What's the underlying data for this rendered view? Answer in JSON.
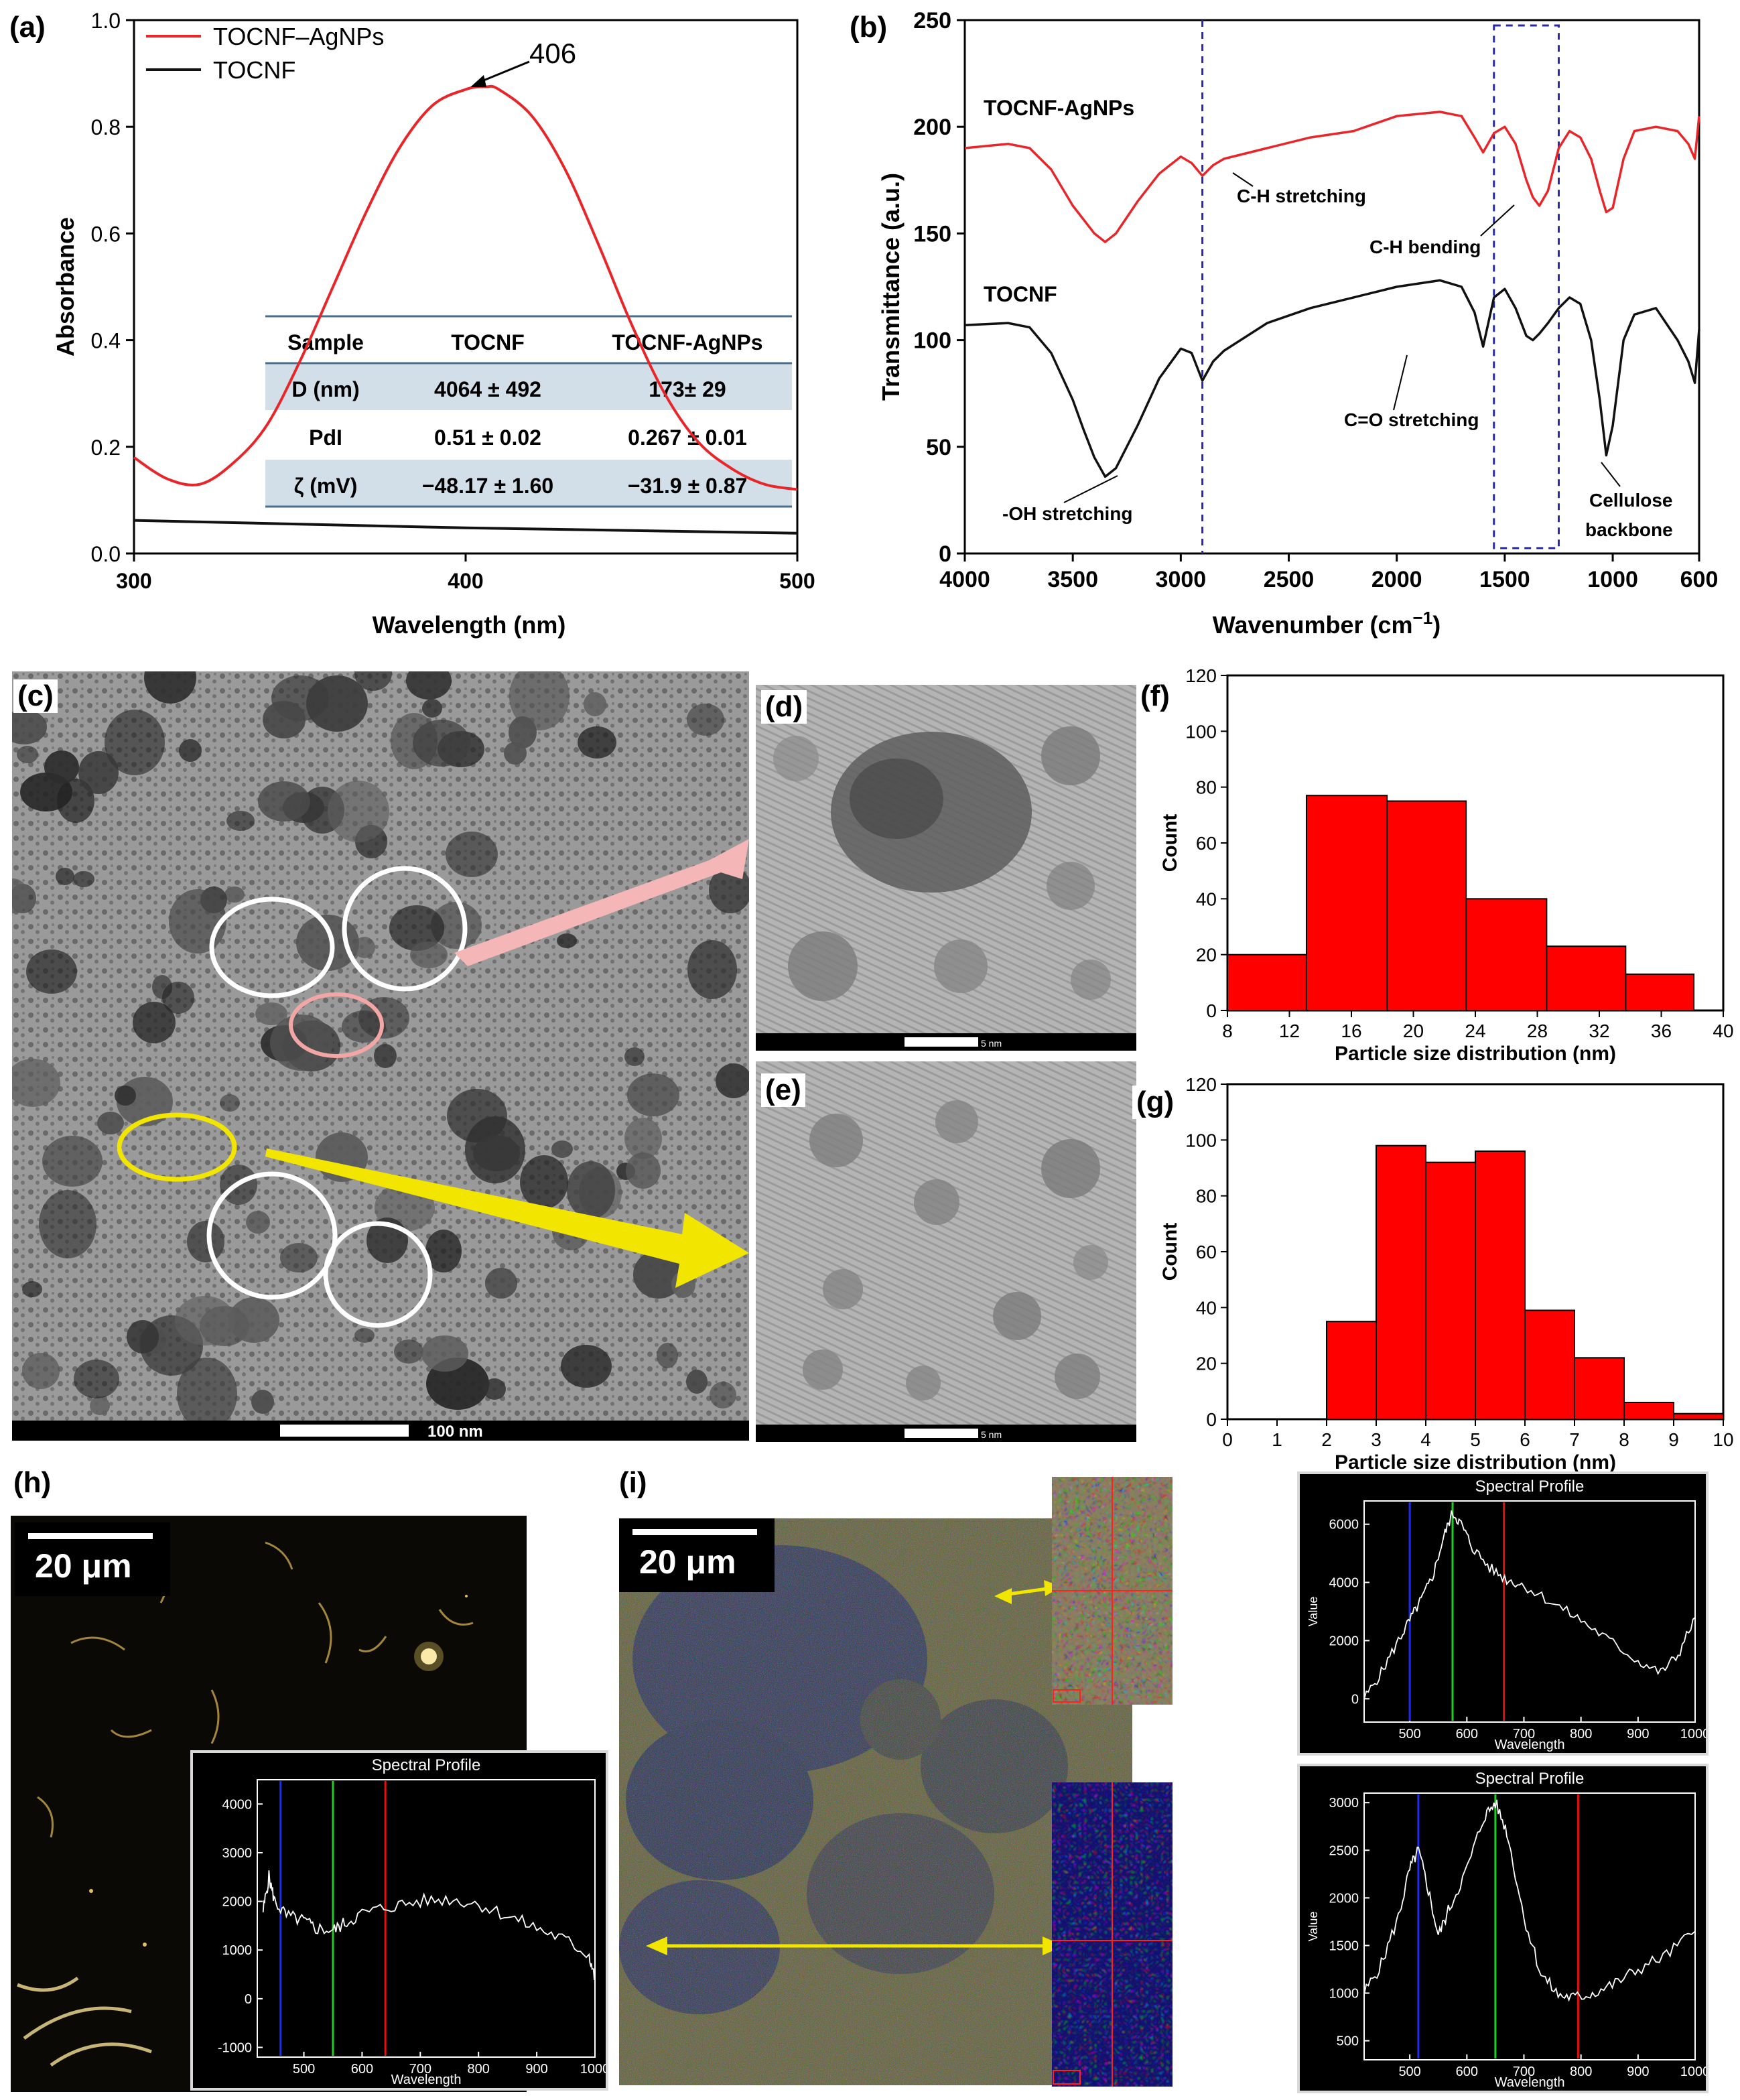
{
  "panel_labels": {
    "a": "(a)",
    "b": "(b)",
    "c": "(c)",
    "d": "(d)",
    "e": "(e)",
    "f": "(f)",
    "g": "(g)",
    "h": "(h)",
    "i": "(i)"
  },
  "colors": {
    "red": "#e8262a",
    "black": "#111111",
    "bar_red": "#ff0000",
    "tem_gray": "#8a8a8a",
    "hsi_blue": "#2a2a6a",
    "spec_blue": "#1a2aff",
    "spec_green": "#22cc22",
    "spec_red": "#dd1111"
  },
  "uvvis": {
    "legend": [
      "TOCNF–AgNPs",
      "TOCNF"
    ],
    "peak_label": "406",
    "xlabel": "Wavelength (nm)",
    "ylabel": "Absorbance",
    "xticks": [
      "300",
      "400",
      "500"
    ],
    "yticks": [
      "0.0",
      "0.2",
      "0.4",
      "0.6",
      "0.8",
      "1.0"
    ],
    "table": {
      "headers": [
        "Sample",
        "TOCNF",
        "TOCNF-AgNPs"
      ],
      "rows": [
        [
          "D (nm)",
          "4064 ± 492",
          "173± 29"
        ],
        [
          "PdI",
          "0.51 ± 0.02",
          "0.267 ± 0.01"
        ],
        [
          "ζ (mV)",
          "−48.17 ± 1.60",
          "−31.9 ± 0.87"
        ]
      ]
    }
  },
  "ftir": {
    "xlabel": "Wavenumber (cm",
    "xlabel_sup": "−1",
    "xlabel_close": ")",
    "ylabel": "Transmittance (a.u.)",
    "xticks": [
      "4000",
      "3500",
      "3000",
      "2500",
      "2000",
      "1500",
      "1000",
      "600"
    ],
    "yticks": [
      "0",
      "50",
      "100",
      "150",
      "200",
      "250"
    ],
    "series_labels": [
      "TOCNF-AgNPs",
      "TOCNF"
    ],
    "annotations": [
      "C-H stretching",
      "C-H bending",
      "-OH stretching",
      "C=O stretching",
      "Cellulose",
      "backbone"
    ]
  },
  "tem": {
    "scale_c": "100 nm",
    "scale_d": "5 nm",
    "scale_e": "5 nm"
  },
  "chart_data": [
    {
      "type": "line",
      "panel": "(a)",
      "xlabel": "Wavelength (nm)",
      "ylabel": "Absorbance",
      "xlim": [
        300,
        500
      ],
      "ylim": [
        0,
        1.0
      ],
      "series": [
        {
          "name": "TOCNF–AgNPs",
          "x": [
            300,
            310,
            320,
            330,
            340,
            350,
            360,
            370,
            380,
            390,
            400,
            406,
            410,
            420,
            430,
            440,
            450,
            460,
            470,
            480,
            490,
            500
          ],
          "y": [
            0.18,
            0.14,
            0.13,
            0.17,
            0.24,
            0.36,
            0.5,
            0.64,
            0.76,
            0.84,
            0.87,
            0.875,
            0.87,
            0.82,
            0.72,
            0.58,
            0.43,
            0.3,
            0.21,
            0.16,
            0.13,
            0.12
          ]
        },
        {
          "name": "TOCNF",
          "x": [
            300,
            350,
            400,
            450,
            500
          ],
          "y": [
            0.062,
            0.055,
            0.048,
            0.043,
            0.038
          ]
        }
      ],
      "annotations": [
        "406"
      ]
    },
    {
      "type": "line",
      "panel": "(b)",
      "xlabel": "Wavenumber (cm−1)",
      "ylabel": "Transmittance (a.u.)",
      "xlim": [
        4000,
        600
      ],
      "ylim": [
        0,
        250
      ],
      "series": [
        {
          "name": "TOCNF-AgNPs",
          "x": [
            4000,
            3800,
            3700,
            3600,
            3500,
            3400,
            3350,
            3300,
            3200,
            3100,
            3000,
            2950,
            2900,
            2850,
            2800,
            2600,
            2400,
            2200,
            2000,
            1800,
            1700,
            1640,
            1600,
            1550,
            1500,
            1450,
            1400,
            1370,
            1340,
            1300,
            1250,
            1200,
            1150,
            1100,
            1060,
            1030,
            1000,
            950,
            900,
            800,
            700,
            650,
            620,
            600
          ],
          "y": [
            190,
            192,
            190,
            180,
            163,
            150,
            146,
            150,
            165,
            178,
            186,
            183,
            177,
            182,
            185,
            190,
            195,
            198,
            205,
            207,
            205,
            195,
            188,
            197,
            200,
            192,
            175,
            167,
            163,
            170,
            190,
            198,
            195,
            185,
            170,
            160,
            162,
            185,
            198,
            200,
            198,
            192,
            185,
            205
          ]
        },
        {
          "name": "TOCNF",
          "x": [
            4000,
            3800,
            3700,
            3600,
            3500,
            3450,
            3400,
            3350,
            3300,
            3200,
            3100,
            3000,
            2950,
            2900,
            2850,
            2800,
            2600,
            2400,
            2200,
            2000,
            1800,
            1700,
            1640,
            1600,
            1550,
            1500,
            1450,
            1400,
            1370,
            1340,
            1300,
            1250,
            1200,
            1150,
            1100,
            1060,
            1030,
            1000,
            950,
            900,
            800,
            700,
            650,
            620,
            600
          ],
          "y": [
            107,
            108,
            106,
            94,
            72,
            58,
            45,
            36,
            40,
            60,
            82,
            96,
            94,
            81,
            90,
            95,
            108,
            115,
            120,
            125,
            128,
            125,
            113,
            97,
            120,
            124,
            115,
            102,
            100,
            103,
            108,
            115,
            120,
            117,
            100,
            72,
            46,
            60,
            100,
            112,
            115,
            100,
            90,
            80,
            105
          ]
        }
      ],
      "annotations": [
        "C-H stretching",
        "C-H bending",
        "-OH stretching",
        "C=O stretching",
        "Cellulose backbone"
      ],
      "markers": [
        {
          "type": "vline",
          "x": 2900
        },
        {
          "type": "box",
          "x": [
            1550,
            1250
          ]
        }
      ]
    },
    {
      "type": "bar",
      "panel": "(f)",
      "xlabel": "Particle size distribution (nm)",
      "ylabel": "Count",
      "xlim": [
        8,
        40
      ],
      "ylim": [
        0,
        120
      ],
      "xticks": [
        8,
        12,
        16,
        20,
        24,
        28,
        32,
        36,
        40
      ],
      "yticks": [
        0,
        20,
        40,
        60,
        80,
        100,
        120
      ],
      "bins": [
        [
          8,
          13.1
        ],
        [
          13.1,
          18.3
        ],
        [
          18.3,
          23.4
        ],
        [
          23.4,
          28.6
        ],
        [
          28.6,
          33.7
        ],
        [
          33.7,
          38.1
        ]
      ],
      "values": [
        20,
        77,
        75,
        40,
        23,
        13
      ]
    },
    {
      "type": "bar",
      "panel": "(g)",
      "xlabel": "Particle size distribution (nm)",
      "ylabel": "Count",
      "xlim": [
        0,
        10
      ],
      "ylim": [
        0,
        120
      ],
      "xticks": [
        0,
        1,
        2,
        3,
        4,
        5,
        6,
        7,
        8,
        9,
        10
      ],
      "yticks": [
        0,
        20,
        40,
        60,
        80,
        100,
        120
      ],
      "bins": [
        [
          2,
          3
        ],
        [
          3,
          4
        ],
        [
          4,
          5
        ],
        [
          5,
          6
        ],
        [
          6,
          7
        ],
        [
          7,
          8
        ],
        [
          8,
          9
        ],
        [
          9,
          10
        ]
      ],
      "values": [
        35,
        98,
        92,
        96,
        39,
        22,
        6,
        2
      ]
    },
    {
      "type": "line",
      "panel": "(h) inset",
      "title": "Spectral Profile",
      "xlabel": "Wavelength",
      "xlim": [
        420,
        1000
      ],
      "ylim": [
        -1200,
        4500
      ],
      "xticks": [
        500,
        600,
        700,
        800,
        900,
        1000
      ],
      "yticks": [
        -1000,
        0,
        1000,
        2000,
        3000,
        4000
      ],
      "series": [
        {
          "x": [
            430,
            440,
            450,
            470,
            500,
            520,
            550,
            570,
            600,
            650,
            700,
            750,
            800,
            850,
            900,
            950,
            990,
            1000
          ],
          "y": [
            1800,
            2500,
            2000,
            1700,
            1600,
            1450,
            1400,
            1550,
            1750,
            1900,
            2000,
            2050,
            1950,
            1700,
            1450,
            1200,
            900,
            400
          ]
        }
      ],
      "markers": [
        {
          "type": "vline",
          "x": 460,
          "color": "blue"
        },
        {
          "type": "vline",
          "x": 550,
          "color": "green"
        },
        {
          "type": "vline",
          "x": 640,
          "color": "red"
        }
      ]
    },
    {
      "type": "line",
      "panel": "(i) inset top",
      "title": "Spectral Profile",
      "xlabel": "Wavelength",
      "ylabel": "Value",
      "xlim": [
        420,
        1000
      ],
      "ylim": [
        -800,
        6800
      ],
      "xticks": [
        500,
        600,
        700,
        800,
        900,
        1000
      ],
      "yticks": [
        0,
        2000,
        4000,
        6000
      ],
      "series": [
        {
          "x": [
            420,
            450,
            480,
            500,
            520,
            540,
            560,
            575,
            590,
            610,
            640,
            670,
            700,
            750,
            800,
            850,
            900,
            940,
            970,
            1000
          ],
          "y": [
            0,
            900,
            2000,
            2700,
            3400,
            4200,
            5600,
            6400,
            6000,
            5200,
            4500,
            4100,
            3900,
            3300,
            2700,
            2000,
            1300,
            900,
            1500,
            2800
          ]
        }
      ],
      "markers": [
        {
          "type": "vline",
          "x": 500,
          "color": "blue"
        },
        {
          "type": "vline",
          "x": 575,
          "color": "green"
        },
        {
          "type": "vline",
          "x": 665,
          "color": "red"
        }
      ]
    },
    {
      "type": "line",
      "panel": "(i) inset bottom",
      "title": "Spectral Profile",
      "xlabel": "Wavelength",
      "ylabel": "Value",
      "xlim": [
        420,
        1000
      ],
      "ylim": [
        300,
        3100
      ],
      "xticks": [
        500,
        600,
        700,
        800,
        900,
        1000
      ],
      "yticks": [
        500,
        1000,
        1500,
        2000,
        2500,
        3000
      ],
      "series": [
        {
          "x": [
            420,
            450,
            480,
            500,
            515,
            530,
            550,
            570,
            600,
            630,
            650,
            670,
            700,
            730,
            760,
            790,
            820,
            860,
            900,
            950,
            1000
          ],
          "y": [
            1000,
            1300,
            1800,
            2300,
            2500,
            2150,
            1600,
            1900,
            2300,
            2850,
            3000,
            2700,
            1800,
            1200,
            980,
            950,
            1000,
            1100,
            1250,
            1400,
            1650
          ]
        }
      ],
      "markers": [
        {
          "type": "vline",
          "x": 515,
          "color": "blue"
        },
        {
          "type": "vline",
          "x": 650,
          "color": "green"
        },
        {
          "type": "vline",
          "x": 795,
          "color": "red"
        }
      ]
    }
  ],
  "hist": {
    "f": {
      "ylabel": "Count",
      "xlabel": "Particle size distribution (nm)"
    },
    "g": {
      "ylabel": "Count",
      "xlabel": "Particle size distribution (nm)"
    }
  },
  "darkfield": {
    "scale_h": "20 μm",
    "scale_i": "20 μm"
  },
  "spectral": {
    "title": "Spectral Profile",
    "xlabel": "Wavelength",
    "ylabel": "Value"
  }
}
